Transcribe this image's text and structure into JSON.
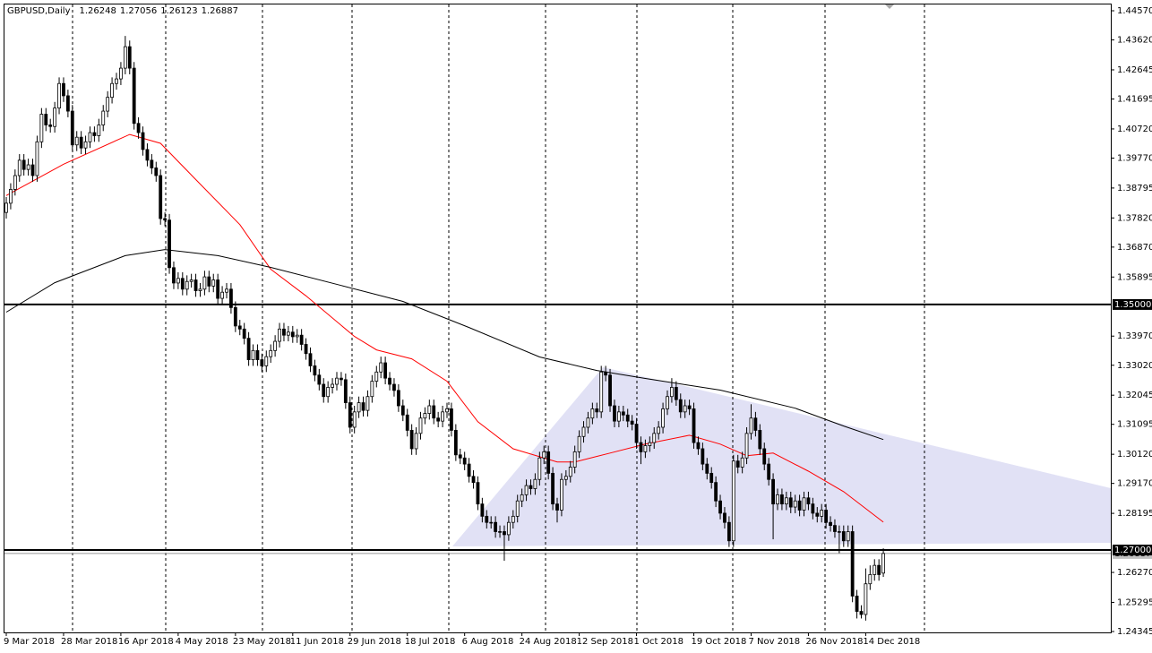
{
  "chart_data": {
    "type": "candlestick",
    "title": "GBPUSD,Daily",
    "categories": [
      "9 Mar 2018",
      null,
      null,
      null,
      null,
      null,
      null,
      null,
      null,
      null,
      null,
      null,
      null,
      "28 Mar 2018",
      null,
      null,
      null,
      null,
      null,
      null,
      null,
      null,
      null,
      null,
      null,
      null,
      "16 Apr 2018",
      null,
      null,
      null,
      null,
      null,
      null,
      null,
      null,
      null,
      null,
      null,
      null,
      "4 May 2018",
      null,
      null,
      null,
      null,
      null,
      null,
      null,
      null,
      null,
      null,
      null,
      null,
      "23 May 2018",
      null,
      null,
      null,
      null,
      null,
      null,
      null,
      null,
      null,
      null,
      null,
      null,
      "11 Jun 2018",
      null,
      null,
      null,
      null,
      null,
      null,
      null,
      null,
      null,
      null,
      null,
      null,
      "29 Jun 2018",
      null,
      null,
      null,
      null,
      null,
      null,
      null,
      null,
      null,
      null,
      null,
      null,
      "18 Jul 2018",
      null,
      null,
      null,
      null,
      null,
      null,
      null,
      null,
      null,
      null,
      null,
      null,
      "6 Aug 2018",
      null,
      null,
      null,
      null,
      null,
      null,
      null,
      null,
      null,
      null,
      null,
      null,
      "24 Aug 2018",
      null,
      null,
      null,
      null,
      null,
      null,
      null,
      null,
      null,
      null,
      null,
      null,
      "12 Sep 2018",
      null,
      null,
      null,
      null,
      null,
      null,
      null,
      null,
      null,
      null,
      null,
      null,
      "1 Oct 2018",
      null,
      null,
      null,
      null,
      null,
      null,
      null,
      null,
      null,
      null,
      null,
      null,
      "19 Oct 2018",
      null,
      null,
      null,
      null,
      null,
      null,
      null,
      null,
      null,
      null,
      null,
      null,
      "7 Nov 2018",
      null,
      null,
      null,
      null,
      null,
      null,
      null,
      null,
      null,
      null,
      null,
      null,
      "26 Nov 2018",
      null,
      null,
      null,
      null,
      null,
      null,
      null,
      null,
      null,
      null,
      null,
      null,
      "14 Dec 2018",
      null,
      null,
      null,
      null
    ],
    "open": [
      1.38,
      1.383,
      1.3875,
      1.392,
      1.397,
      1.394,
      1.3955,
      1.392,
      1.403,
      1.412,
      1.4085,
      1.408,
      1.414,
      1.422,
      1.418,
      1.413,
      1.402,
      1.4045,
      1.401,
      1.403,
      1.406,
      1.405,
      1.4085,
      1.413,
      1.4175,
      1.422,
      1.4235,
      1.427,
      1.434,
      1.427,
      1.409,
      1.406,
      1.4005,
      1.397,
      1.3945,
      1.392,
      1.378,
      1.3775,
      1.362,
      1.357,
      1.3585,
      1.355,
      1.3575,
      1.358,
      1.3545,
      1.355,
      1.359,
      1.356,
      1.358,
      1.352,
      1.354,
      1.355,
      1.349,
      1.343,
      1.342,
      1.339,
      1.332,
      1.335,
      1.332,
      1.33,
      1.333,
      1.335,
      1.338,
      1.342,
      1.34,
      1.341,
      1.3395,
      1.34,
      1.337,
      1.334,
      1.33,
      1.327,
      1.324,
      1.32,
      1.323,
      1.324,
      1.326,
      1.3255,
      1.318,
      1.31,
      1.315,
      1.318,
      1.3155,
      1.32,
      1.325,
      1.328,
      1.331,
      1.326,
      1.324,
      1.322,
      1.317,
      1.314,
      1.309,
      1.303,
      1.308,
      1.313,
      1.3145,
      1.317,
      1.313,
      1.312,
      1.315,
      1.316,
      1.309,
      1.301,
      1.3,
      1.298,
      1.294,
      1.292,
      1.285,
      1.281,
      1.279,
      1.279,
      1.276,
      1.276,
      1.275,
      1.279,
      1.281,
      1.286,
      1.288,
      1.291,
      1.29,
      1.293,
      1.3,
      1.302,
      1.295,
      1.285,
      1.283,
      1.293,
      1.294,
      1.297,
      1.302,
      1.307,
      1.31,
      1.313,
      1.316,
      1.315,
      1.328,
      1.327,
      1.317,
      1.312,
      1.315,
      1.314,
      1.312,
      1.311,
      1.305,
      1.302,
      1.304,
      1.305,
      1.308,
      1.31,
      1.316,
      1.32,
      1.323,
      1.319,
      1.315,
      1.317,
      1.316,
      1.305,
      1.303,
      1.298,
      1.295,
      1.292,
      1.286,
      1.282,
      1.279,
      1.273,
      1.299,
      1.297,
      1.3,
      1.308,
      1.313,
      1.309,
      1.303,
      1.298,
      1.293,
      1.285,
      1.288,
      1.285,
      1.287,
      1.284,
      1.286,
      1.283,
      1.287,
      1.285,
      1.282,
      1.281,
      1.283,
      1.279,
      1.278,
      1.276,
      1.276,
      1.273,
      1.276,
      1.255,
      1.25,
      1.249,
      1.259,
      1.262,
      1.265,
      1.26248
    ],
    "high": [
      1.385,
      1.3895,
      1.394,
      1.399,
      1.399,
      1.3975,
      1.3975,
      1.405,
      1.414,
      1.414,
      1.4105,
      1.416,
      1.424,
      1.424,
      1.42,
      1.415,
      1.4065,
      1.4065,
      1.405,
      1.408,
      1.408,
      1.4105,
      1.415,
      1.4195,
      1.424,
      1.4255,
      1.429,
      1.4375,
      1.436,
      1.429,
      1.411,
      1.408,
      1.4025,
      1.399,
      1.3965,
      1.394,
      1.38,
      1.3795,
      1.364,
      1.3605,
      1.3605,
      1.3595,
      1.36,
      1.36,
      1.357,
      1.361,
      1.361,
      1.36,
      1.36,
      1.356,
      1.357,
      1.357,
      1.351,
      1.345,
      1.344,
      1.341,
      1.337,
      1.337,
      1.334,
      1.335,
      1.337,
      1.34,
      1.344,
      1.344,
      1.343,
      1.343,
      1.342,
      1.342,
      1.339,
      1.336,
      1.332,
      1.329,
      1.326,
      1.325,
      1.326,
      1.328,
      1.328,
      1.3275,
      1.32,
      1.317,
      1.32,
      1.32,
      1.322,
      1.327,
      1.33,
      1.333,
      1.333,
      1.328,
      1.326,
      1.324,
      1.319,
      1.316,
      1.311,
      1.31,
      1.315,
      1.3165,
      1.319,
      1.319,
      1.315,
      1.317,
      1.318,
      1.318,
      1.311,
      1.303,
      1.302,
      1.3,
      1.296,
      1.294,
      1.287,
      1.283,
      1.281,
      1.281,
      1.278,
      1.278,
      1.281,
      1.283,
      1.288,
      1.29,
      1.293,
      1.293,
      1.295,
      1.302,
      1.304,
      1.304,
      1.297,
      1.287,
      1.295,
      1.296,
      1.299,
      1.304,
      1.309,
      1.312,
      1.315,
      1.318,
      1.318,
      1.33,
      1.33,
      1.329,
      1.319,
      1.317,
      1.317,
      1.316,
      1.314,
      1.313,
      1.307,
      1.306,
      1.307,
      1.31,
      1.312,
      1.318,
      1.322,
      1.326,
      1.325,
      1.321,
      1.319,
      1.319,
      1.318,
      1.307,
      1.305,
      1.3,
      1.297,
      1.294,
      1.288,
      1.284,
      1.281,
      1.301,
      1.301,
      1.302,
      1.31,
      1.3175,
      1.315,
      1.311,
      1.305,
      1.3,
      1.295,
      1.29,
      1.29,
      1.289,
      1.289,
      1.288,
      1.288,
      1.289,
      1.289,
      1.287,
      1.284,
      1.285,
      1.285,
      1.281,
      1.28,
      1.278,
      1.278,
      1.278,
      1.278,
      1.257,
      1.252,
      1.264,
      1.265,
      1.267,
      1.267,
      1.27056
    ],
    "low": [
      1.378,
      1.381,
      1.3855,
      1.39,
      1.392,
      1.392,
      1.39,
      1.39,
      1.401,
      1.4065,
      1.406,
      1.406,
      1.412,
      1.416,
      1.411,
      1.4,
      1.4,
      1.399,
      1.399,
      1.401,
      1.403,
      1.403,
      1.4065,
      1.411,
      1.4155,
      1.42,
      1.4215,
      1.425,
      1.425,
      1.407,
      1.404,
      1.3985,
      1.395,
      1.3925,
      1.39,
      1.376,
      1.3755,
      1.36,
      1.355,
      1.355,
      1.353,
      1.353,
      1.3555,
      1.3525,
      1.3525,
      1.353,
      1.354,
      1.354,
      1.35,
      1.35,
      1.352,
      1.347,
      1.341,
      1.34,
      1.337,
      1.33,
      1.33,
      1.33,
      1.328,
      1.328,
      1.331,
      1.333,
      1.336,
      1.338,
      1.338,
      1.3375,
      1.3375,
      1.335,
      1.332,
      1.328,
      1.325,
      1.322,
      1.318,
      1.318,
      1.321,
      1.322,
      1.3235,
      1.316,
      1.308,
      1.308,
      1.313,
      1.3135,
      1.3135,
      1.318,
      1.323,
      1.326,
      1.324,
      1.322,
      1.32,
      1.315,
      1.312,
      1.307,
      1.301,
      1.301,
      1.306,
      1.311,
      1.3125,
      1.311,
      1.31,
      1.31,
      1.313,
      1.307,
      1.299,
      1.298,
      1.296,
      1.292,
      1.29,
      1.283,
      1.279,
      1.277,
      1.277,
      1.274,
      1.274,
      1.2665,
      1.273,
      1.277,
      1.279,
      1.284,
      1.286,
      1.288,
      1.288,
      1.291,
      1.298,
      1.293,
      1.283,
      1.279,
      1.281,
      1.291,
      1.292,
      1.295,
      1.3,
      1.305,
      1.308,
      1.311,
      1.313,
      1.313,
      1.325,
      1.315,
      1.31,
      1.31,
      1.312,
      1.31,
      1.309,
      1.303,
      1.298,
      1.3,
      1.302,
      1.303,
      1.306,
      1.308,
      1.314,
      1.318,
      1.317,
      1.313,
      1.313,
      1.314,
      1.303,
      1.301,
      1.296,
      1.293,
      1.29,
      1.284,
      1.28,
      1.277,
      1.271,
      1.271,
      1.295,
      1.295,
      1.298,
      1.306,
      1.307,
      1.301,
      1.296,
      1.291,
      1.2735,
      1.283,
      1.283,
      1.283,
      1.282,
      1.282,
      1.281,
      1.281,
      1.283,
      1.28,
      1.279,
      1.279,
      1.277,
      1.276,
      1.274,
      1.269,
      1.271,
      1.271,
      1.253,
      1.2477,
      1.2477,
      1.247,
      1.257,
      1.26,
      1.26,
      1.26123
    ],
    "close": [
      1.383,
      1.3875,
      1.392,
      1.397,
      1.394,
      1.3955,
      1.392,
      1.403,
      1.412,
      1.4085,
      1.408,
      1.414,
      1.422,
      1.418,
      1.413,
      1.402,
      1.4045,
      1.401,
      1.403,
      1.406,
      1.405,
      1.4085,
      1.413,
      1.4175,
      1.422,
      1.4235,
      1.427,
      1.434,
      1.427,
      1.409,
      1.406,
      1.4005,
      1.397,
      1.3945,
      1.392,
      1.378,
      1.3775,
      1.362,
      1.357,
      1.3585,
      1.355,
      1.3575,
      1.358,
      1.3545,
      1.355,
      1.359,
      1.356,
      1.358,
      1.352,
      1.354,
      1.355,
      1.349,
      1.343,
      1.342,
      1.339,
      1.332,
      1.335,
      1.332,
      1.33,
      1.333,
      1.335,
      1.338,
      1.342,
      1.34,
      1.341,
      1.3395,
      1.34,
      1.337,
      1.334,
      1.33,
      1.327,
      1.324,
      1.32,
      1.323,
      1.324,
      1.326,
      1.3255,
      1.318,
      1.31,
      1.315,
      1.318,
      1.3155,
      1.32,
      1.325,
      1.328,
      1.331,
      1.326,
      1.324,
      1.322,
      1.317,
      1.314,
      1.309,
      1.303,
      1.308,
      1.313,
      1.3145,
      1.317,
      1.313,
      1.312,
      1.315,
      1.316,
      1.309,
      1.301,
      1.3,
      1.298,
      1.294,
      1.292,
      1.285,
      1.281,
      1.279,
      1.279,
      1.276,
      1.276,
      1.275,
      1.279,
      1.281,
      1.286,
      1.288,
      1.291,
      1.29,
      1.293,
      1.3,
      1.302,
      1.295,
      1.285,
      1.283,
      1.293,
      1.294,
      1.297,
      1.302,
      1.307,
      1.31,
      1.313,
      1.316,
      1.315,
      1.328,
      1.327,
      1.317,
      1.312,
      1.315,
      1.314,
      1.312,
      1.311,
      1.305,
      1.302,
      1.304,
      1.305,
      1.308,
      1.31,
      1.316,
      1.32,
      1.323,
      1.319,
      1.315,
      1.317,
      1.316,
      1.305,
      1.303,
      1.298,
      1.295,
      1.292,
      1.286,
      1.282,
      1.279,
      1.273,
      1.299,
      1.297,
      1.3,
      1.308,
      1.313,
      1.309,
      1.303,
      1.298,
      1.293,
      1.285,
      1.288,
      1.285,
      1.287,
      1.284,
      1.286,
      1.283,
      1.287,
      1.285,
      1.282,
      1.281,
      1.283,
      1.279,
      1.278,
      1.276,
      1.276,
      1.273,
      1.276,
      1.255,
      1.25,
      1.249,
      1.259,
      1.262,
      1.265,
      1.262,
      1.26887
    ],
    "series": [
      {
        "color": "#ff0000",
        "x": [
          0,
          13,
          28,
          35,
          43,
          53,
          60,
          68,
          79,
          84,
          92,
          100,
          107,
          115,
          125,
          129,
          137,
          145,
          155,
          162,
          168,
          174,
          182,
          190,
          199
        ],
        "values": [
          1.3855,
          1.3957,
          1.4054,
          1.4025,
          1.3907,
          1.376,
          1.3615,
          1.3528,
          1.3396,
          1.3352,
          1.3323,
          1.325,
          1.3118,
          1.303,
          1.2987,
          1.2987,
          1.3016,
          1.3045,
          1.3074,
          1.3045,
          1.3007,
          1.3016,
          1.2957,
          1.289,
          1.2791
        ]
      },
      {
        "color": "#000000",
        "x": [
          0,
          11,
          27,
          36,
          48,
          60,
          76,
          90,
          105,
          121,
          134,
          145,
          162,
          179,
          190,
          199
        ],
        "values": [
          1.3475,
          1.3571,
          1.3659,
          1.3679,
          1.3659,
          1.3621,
          1.3562,
          1.351,
          1.3425,
          1.3329,
          1.3285,
          1.3259,
          1.3221,
          1.3162,
          1.3104,
          1.306
        ]
      }
    ],
    "levels": [
      {
        "value": 1.35,
        "label": "1.35000"
      },
      {
        "value": 1.27,
        "label": "1.27000"
      }
    ],
    "ylim": [
      1.24316,
      1.44775
    ],
    "yticks": [
      {
        "value": 1.4457,
        "label": "1.44570"
      },
      {
        "value": 1.4362,
        "label": "1.43620"
      },
      {
        "value": 1.42645,
        "label": "1.42645"
      },
      {
        "value": 1.41695,
        "label": "1.41695"
      },
      {
        "value": 1.4072,
        "label": "1.40720"
      },
      {
        "value": 1.3977,
        "label": "1.39770"
      },
      {
        "value": 1.38795,
        "label": "1.38795"
      },
      {
        "value": 1.3782,
        "label": "1.37820"
      },
      {
        "value": 1.3687,
        "label": "1.36870"
      },
      {
        "value": 1.35895,
        "label": "1.35895"
      },
      {
        "value": 1.3397,
        "label": "1.33970"
      },
      {
        "value": 1.3302,
        "label": "1.33020"
      },
      {
        "value": 1.32045,
        "label": "1.32045"
      },
      {
        "value": 1.31095,
        "label": "1.31095"
      },
      {
        "value": 1.3012,
        "label": "1.30120"
      },
      {
        "value": 1.2917,
        "label": "1.29170"
      },
      {
        "value": 1.28195,
        "label": "1.28195"
      },
      {
        "value": 1.2627,
        "label": "1.26270"
      },
      {
        "value": 1.25295,
        "label": "1.25295"
      },
      {
        "value": 1.24345,
        "label": "1.24345"
      }
    ]
  }
}
